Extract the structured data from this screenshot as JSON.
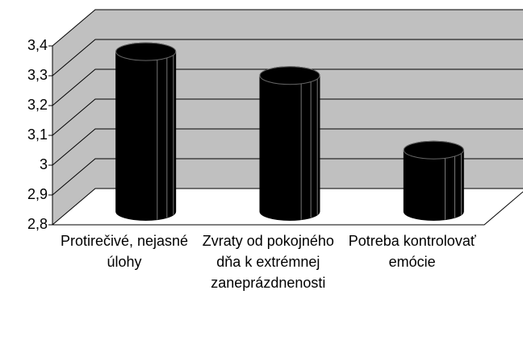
{
  "chart_data": {
    "type": "bar",
    "categories": [
      "Protirečivé, nejasné úlohy",
      "Zvraty od pokojného dňa k extrémnej zaneprázdnenosti",
      "Potreba kontrolovať emócie"
    ],
    "values": [
      3.32,
      3.24,
      2.99
    ],
    "color": "#000000",
    "ylim": [
      2.8,
      3.4
    ],
    "yticks": [
      {
        "value": 2.8,
        "label": "2,8"
      },
      {
        "value": 2.9,
        "label": "2,9"
      },
      3,
      {
        "value": 3.1,
        "label": "3,1"
      },
      {
        "value": 3.2,
        "label": "3,2"
      },
      {
        "value": 3.3,
        "label": "3,3"
      },
      {
        "value": 3.4,
        "label": "3,4"
      }
    ],
    "grid": true
  }
}
